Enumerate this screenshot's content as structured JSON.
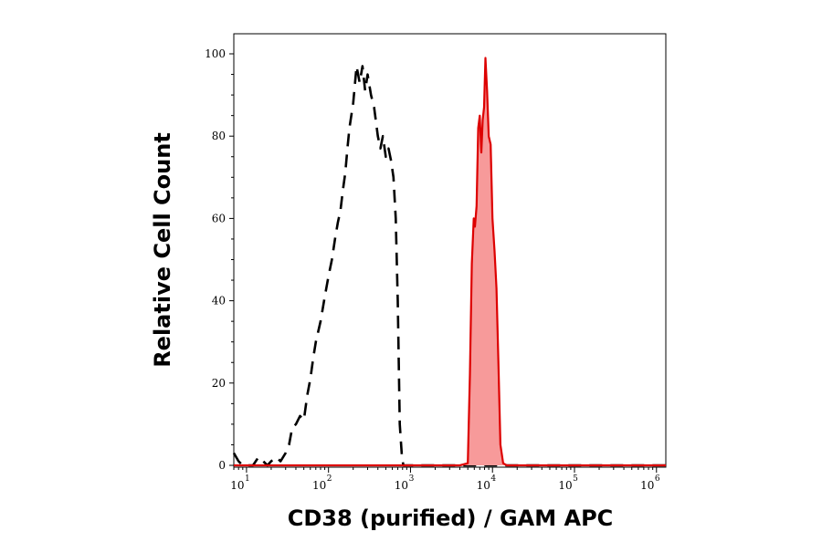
{
  "chart_data": {
    "type": "area",
    "title": "",
    "xlabel": "CD38 (purified) / GAM APC",
    "ylabel": "Relative Cell Count",
    "xscale": "log",
    "xlim": [
      7,
      1300000
    ],
    "ylim": [
      0,
      100
    ],
    "grid": false,
    "x_ticks": [
      {
        "base": "10",
        "exp": "1",
        "value": 10
      },
      {
        "base": "10",
        "exp": "2",
        "value": 100
      },
      {
        "base": "10",
        "exp": "3",
        "value": 1000
      },
      {
        "base": "10",
        "exp": "4",
        "value": 10000
      },
      {
        "base": "10",
        "exp": "5",
        "value": 100000
      },
      {
        "base": "10",
        "exp": "6",
        "value": 1000000
      }
    ],
    "y_ticks": [
      0,
      20,
      40,
      60,
      80,
      100
    ],
    "series": [
      {
        "style": "dashed",
        "color": "#000000",
        "fill": "none",
        "x": [
          7,
          8,
          9,
          10,
          12,
          14,
          16,
          18,
          20,
          23,
          26,
          30,
          33,
          36,
          40,
          45,
          50,
          55,
          60,
          65,
          70,
          80,
          90,
          100,
          110,
          120,
          130,
          140,
          150,
          160,
          170,
          180,
          200,
          220,
          240,
          260,
          280,
          300,
          330,
          360,
          400,
          430,
          460,
          500,
          540,
          580,
          620,
          660,
          700,
          740,
          780,
          800,
          820,
          900,
          1000,
          2000,
          10000,
          1300000
        ],
        "y": [
          3,
          1,
          0,
          0,
          0,
          2,
          1,
          0,
          1,
          2,
          1,
          3,
          5,
          9,
          10,
          12,
          11,
          17,
          21,
          26,
          30,
          35,
          41,
          46,
          50,
          55,
          59,
          62,
          67,
          71,
          77,
          82,
          88,
          97,
          93,
          97,
          91,
          95,
          90,
          87,
          80,
          77,
          80,
          75,
          77,
          74,
          70,
          60,
          40,
          10,
          3,
          1,
          0,
          0,
          0,
          0,
          0,
          0
        ]
      },
      {
        "style": "solid",
        "color": "#dd0000",
        "fill": "#f79a9a",
        "x": [
          7,
          1000,
          4000,
          5000,
          5300,
          5600,
          5900,
          6100,
          6400,
          6700,
          7000,
          7300,
          7600,
          7900,
          8200,
          8600,
          9000,
          9500,
          10000,
          10600,
          11200,
          11800,
          12500,
          13500,
          15000,
          30000,
          1300000
        ],
        "y": [
          0,
          0,
          0,
          0.5,
          22,
          49,
          60,
          58,
          63,
          82,
          85,
          76,
          84,
          87,
          99,
          91,
          80,
          78,
          60,
          52,
          43,
          25,
          5,
          0.5,
          0,
          0,
          0
        ]
      }
    ]
  }
}
